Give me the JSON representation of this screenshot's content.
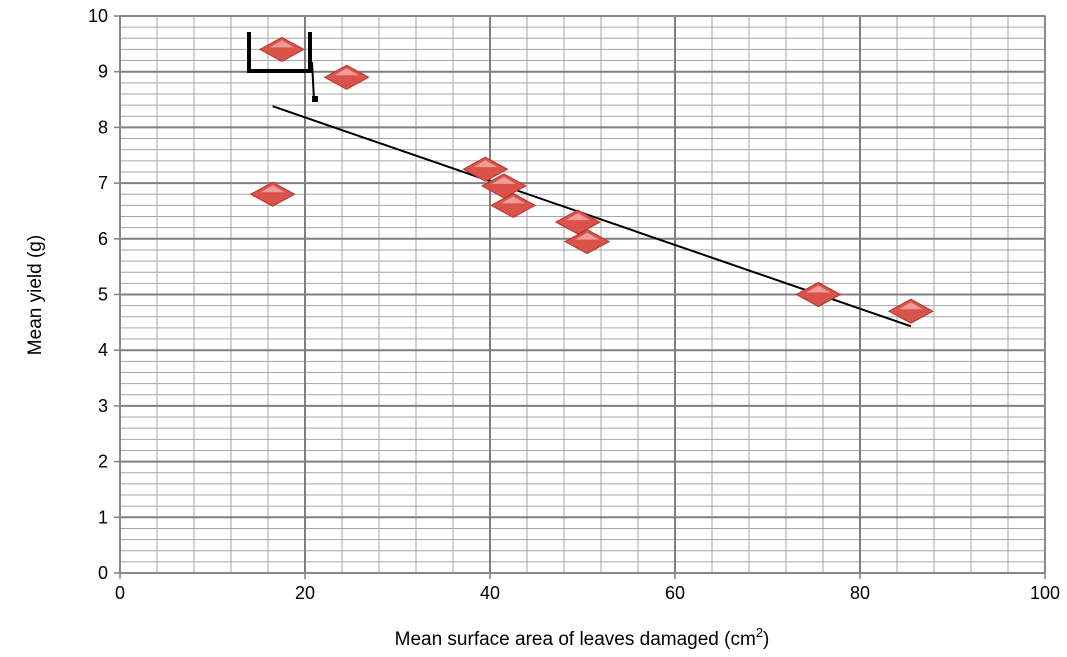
{
  "chart_data": {
    "type": "scatter",
    "title": "",
    "xlabel": "Mean surface area of leaves damaged (cm",
    "xlabel_superscript": "2",
    "xlabel_suffix": ")",
    "ylabel": "Mean  yield (g)",
    "xlim": [
      0,
      100
    ],
    "ylim": [
      0,
      10
    ],
    "x_ticks": [
      0,
      20,
      40,
      60,
      80,
      100
    ],
    "y_ticks": [
      0,
      1,
      2,
      3,
      4,
      5,
      6,
      7,
      8,
      9,
      10
    ],
    "grid": true,
    "legend": "none",
    "marker_color": "#d9534a",
    "marker_shape": "diamond",
    "line_color": "#000000",
    "series": [
      {
        "points": [
          {
            "x": 17.5,
            "y": 9.4
          },
          {
            "x": 24.5,
            "y": 8.9
          },
          {
            "x": 16.5,
            "y": 6.8
          },
          {
            "x": 39.5,
            "y": 7.25
          },
          {
            "x": 41.5,
            "y": 6.95
          },
          {
            "x": 42.5,
            "y": 6.6
          },
          {
            "x": 49.5,
            "y": 6.3
          },
          {
            "x": 50.5,
            "y": 5.95
          },
          {
            "x": 75.5,
            "y": 5.0
          },
          {
            "x": 85.5,
            "y": 4.7
          }
        ]
      }
    ],
    "trendline": {
      "type": "linear",
      "x": [
        16.5,
        85.5
      ],
      "y": [
        8.38,
        4.43
      ]
    }
  }
}
